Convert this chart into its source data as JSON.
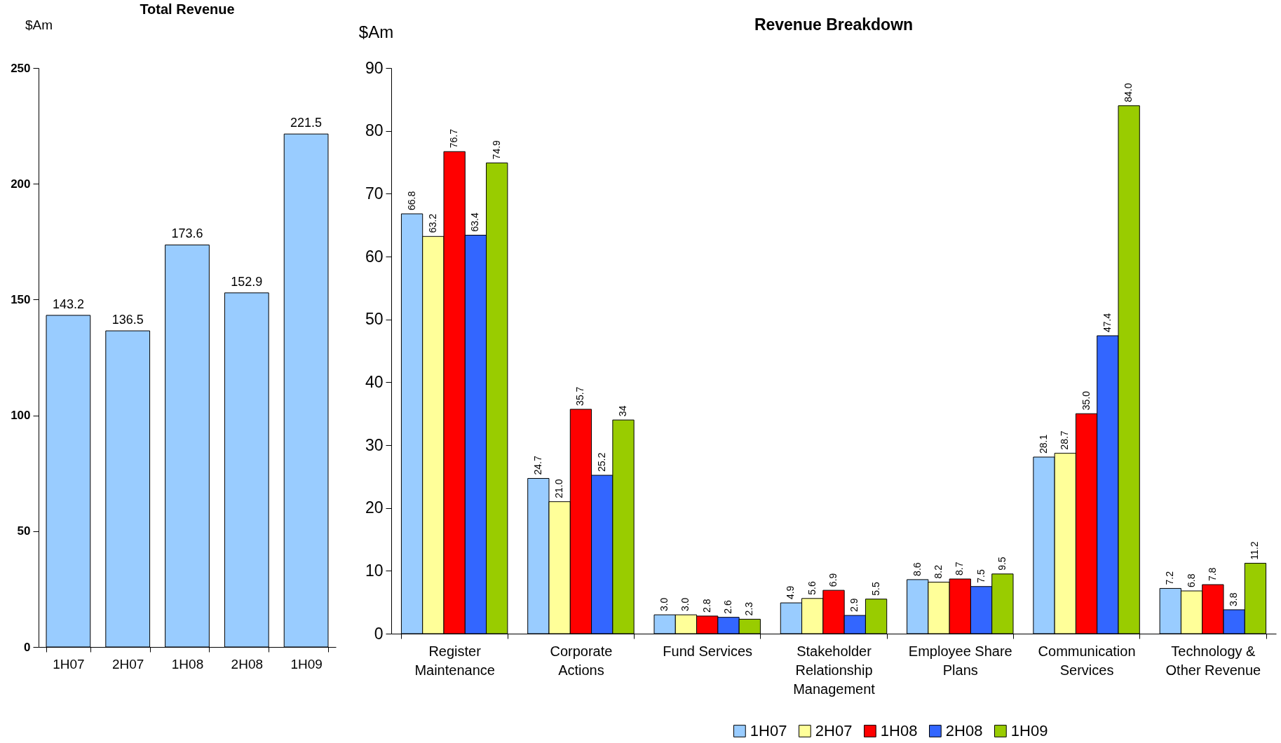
{
  "chart_data": [
    {
      "type": "bar",
      "title": "Total Revenue",
      "ylabel": "$Am",
      "categories": [
        "1H07",
        "2H07",
        "1H08",
        "2H08",
        "1H09"
      ],
      "values": [
        143.2,
        136.5,
        173.6,
        152.9,
        221.5
      ],
      "color": "#99ccff",
      "ylim": [
        0,
        250
      ],
      "yticks": [
        0,
        50,
        100,
        150,
        200,
        250
      ],
      "data_labels": true,
      "grid": false,
      "legend": false
    },
    {
      "type": "bar",
      "title": "Revenue Breakdown",
      "ylabel": "$Am",
      "categories": [
        "Register Maintenance",
        "Corporate Actions",
        "Fund Services",
        "Stakeholder Relationship Management",
        "Employee Share Plans",
        "Communication Services",
        "Technology & Other Revenue"
      ],
      "series": [
        {
          "name": "1H07",
          "color": "#99ccff",
          "values": [
            66.8,
            24.7,
            3.0,
            4.9,
            8.6,
            28.1,
            7.2
          ],
          "value_labels": [
            "66.8",
            "24.7",
            "3.0",
            "4.9",
            "8.6",
            "28.1",
            "7.2"
          ]
        },
        {
          "name": "2H07",
          "color": "#ffff99",
          "values": [
            63.2,
            21.0,
            3.0,
            5.6,
            8.2,
            28.7,
            6.8
          ],
          "value_labels": [
            "63.2",
            "21.0",
            "3.0",
            "5.6",
            "8.2",
            "28.7",
            "6.8"
          ]
        },
        {
          "name": "1H08",
          "color": "#ff0000",
          "values": [
            76.7,
            35.7,
            2.8,
            6.9,
            8.7,
            35.0,
            7.8
          ],
          "value_labels": [
            "76.7",
            "35.7",
            "2.8",
            "6.9",
            "8.7",
            "35.0",
            "7.8"
          ]
        },
        {
          "name": "2H08",
          "color": "#3366ff",
          "values": [
            63.4,
            25.2,
            2.6,
            2.9,
            7.5,
            47.4,
            3.8
          ],
          "value_labels": [
            "63.4",
            "25.2",
            "2.6",
            "2.9",
            "7.5",
            "47.4",
            "3.8"
          ]
        },
        {
          "name": "1H09",
          "color": "#99cc00",
          "values": [
            74.9,
            34,
            2.3,
            5.5,
            9.5,
            84.0,
            11.2
          ],
          "value_labels": [
            "74.9",
            "34",
            "2.3",
            "5.5",
            "9.5",
            "84.0",
            "11.2"
          ]
        }
      ],
      "ylim": [
        0,
        90
      ],
      "yticks": [
        0,
        10,
        20,
        30,
        40,
        50,
        60,
        70,
        80,
        90
      ],
      "grid": false,
      "legend": "bottom"
    }
  ]
}
